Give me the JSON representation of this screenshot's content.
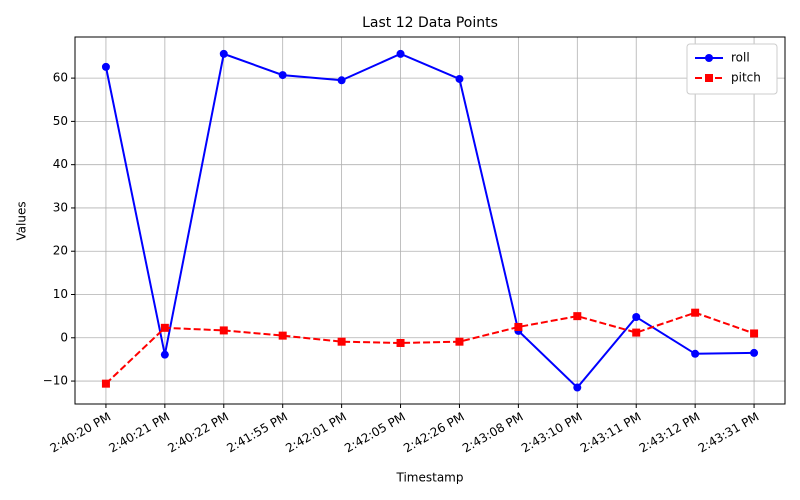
{
  "chart_data": {
    "type": "line",
    "title": "Last 12 Data Points",
    "xlabel": "Timestamp",
    "ylabel": "Values",
    "categories": [
      "2:40:20 PM",
      "2:40:21 PM",
      "2:40:22 PM",
      "2:41:55 PM",
      "2:42:01 PM",
      "2:42:05 PM",
      "2:42:26 PM",
      "2:43:08 PM",
      "2:43:10 PM",
      "2:43:11 PM",
      "2:43:12 PM",
      "2:43:31 PM"
    ],
    "series": [
      {
        "name": "roll",
        "color": "#0000ff",
        "linestyle": "solid",
        "marker": "circle",
        "values": [
          62.6,
          -3.9,
          65.6,
          60.7,
          59.5,
          65.6,
          59.8,
          1.6,
          -11.5,
          4.8,
          -3.7,
          -3.5
        ]
      },
      {
        "name": "pitch",
        "color": "#ff0000",
        "linestyle": "dashed",
        "marker": "square",
        "values": [
          -10.6,
          2.3,
          1.7,
          0.5,
          -0.9,
          -1.2,
          -0.9,
          2.5,
          5.0,
          1.2,
          5.8,
          1.0
        ]
      }
    ],
    "ylim": [
      -15.3,
      69.5
    ],
    "yticks": [
      {
        "value": -10,
        "label": "−10"
      },
      0,
      10,
      20,
      30,
      40,
      50,
      60
    ],
    "grid": true,
    "legend": "upper right"
  }
}
